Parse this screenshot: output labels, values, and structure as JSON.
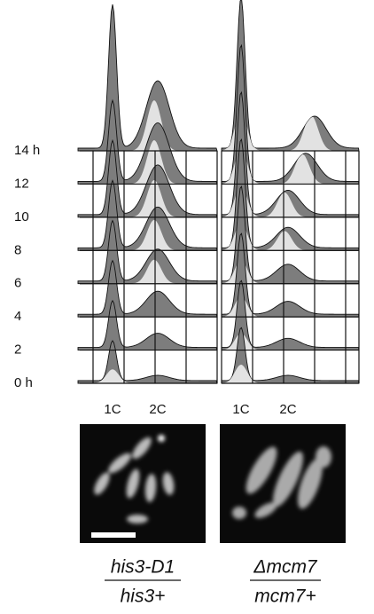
{
  "time_labels": [
    "14 h",
    "12",
    "10",
    "8",
    "6",
    "4",
    "2",
    "0 h"
  ],
  "panels": [
    {
      "peak_labels": [
        "1C",
        "2C"
      ],
      "caption": [
        "his3-D1",
        "his3+"
      ]
    },
    {
      "peak_labels": [
        "1C",
        "2C"
      ],
      "caption": [
        "Δmcm7",
        "mcm7+"
      ]
    }
  ]
}
